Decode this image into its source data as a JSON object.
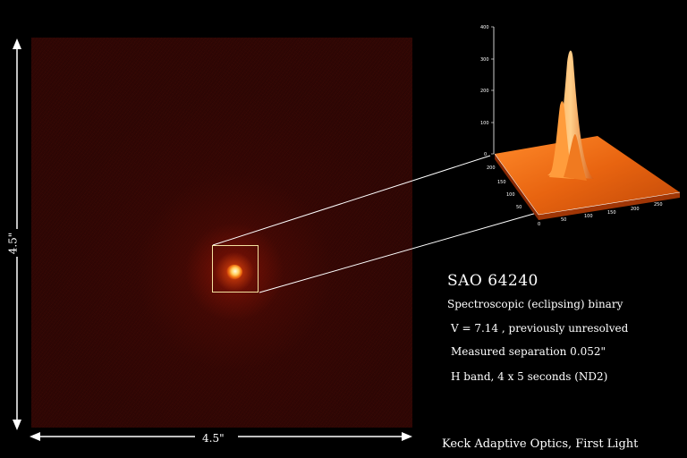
{
  "image": {
    "object_name": "SAO 64240",
    "description": "Spectroscopic (eclipsing) binary",
    "magnitude": "V = 7.14 , previously unresolved",
    "separation": "Measured separation 0.052\"",
    "exposure": "H band, 4 x 5 seconds (ND2)",
    "footer": "Keck Adaptive Optics, First Light",
    "x_scale_label": "4.5\"",
    "y_scale_label": "4.5\""
  },
  "surface_plot": {
    "z_ticks": [
      "0",
      "100",
      "200",
      "300",
      "400"
    ],
    "x_ticks": [
      "0",
      "50",
      "100",
      "150",
      "200",
      "250"
    ],
    "y_ticks": [
      "50",
      "100",
      "150",
      "200"
    ]
  },
  "colors": {
    "background": "#000000",
    "frame": "#2a0604",
    "box": "#f4e2a0",
    "surface": "#ff7a1a"
  }
}
